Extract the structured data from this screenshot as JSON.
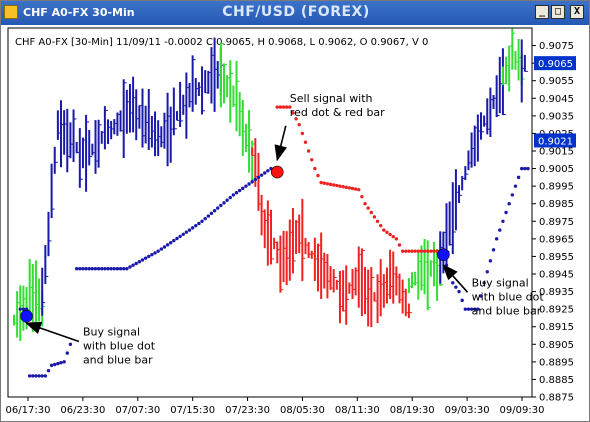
{
  "window": {
    "app_title": "CHF A0-FX 30-Min",
    "chart_title": "CHF/USD (FOREX)",
    "buttons": {
      "minimize": "_",
      "maximize": "□",
      "close": "X"
    }
  },
  "info_line": "CHF A0-FX [30-Min] 11/09/11  -0.0002 C 0.9065, H 0.9068, L 0.9062, O 0.9067, V 0",
  "colors": {
    "up": "#33dd33",
    "down": "#ee2222",
    "blue": "#1a1aaa",
    "signal_blue": "#1111ff",
    "sell_dot": "#ff1111",
    "marker_bg": "#0033cc"
  },
  "chart_data": {
    "type": "ohlc",
    "title": "CHF/USD (FOREX)",
    "ylim": [
      0.8875,
      0.9085
    ],
    "grid": false,
    "legend": "none",
    "x_tick_labels": [
      "06/17:30",
      "06/23:30",
      "07/07:30",
      "07/15:30",
      "07/23:30",
      "08/05:30",
      "08/11:30",
      "08/19:30",
      "09/03:30",
      "09/09:30"
    ],
    "y_tick_labels": [
      "0.9075",
      "0.9065",
      "0.9055",
      "0.9045",
      "0.9035",
      "0.9025",
      "0.9015",
      "0.9005",
      "0.8995",
      "0.8985",
      "0.8975",
      "0.8965",
      "0.8955",
      "0.8945",
      "0.8935",
      "0.8925",
      "0.8915",
      "0.8905",
      "0.8895",
      "0.8885",
      "0.8875"
    ],
    "price_markers": [
      {
        "label": "0.9065",
        "value": 0.9065
      },
      {
        "label": "0.9021",
        "value": 0.9021
      }
    ],
    "segments": [
      {
        "color": "up",
        "waypoints": [
          [
            0,
            0.8918
          ],
          [
            5,
            0.8932
          ],
          [
            9,
            0.8928
          ]
        ]
      },
      {
        "color": "blue",
        "waypoints": [
          [
            9,
            0.893
          ],
          [
            14,
            0.903
          ],
          [
            22,
            0.9012
          ],
          [
            30,
            0.9025
          ],
          [
            38,
            0.904
          ],
          [
            47,
            0.9022
          ],
          [
            57,
            0.9048
          ],
          [
            66,
            0.906
          ]
        ]
      },
      {
        "color": "up",
        "waypoints": [
          [
            66,
            0.9058
          ],
          [
            71,
            0.9045
          ],
          [
            76,
            0.901
          ]
        ]
      },
      {
        "color": "down",
        "waypoints": [
          [
            76,
            0.9015
          ],
          [
            80,
            0.8972
          ],
          [
            85,
            0.8955
          ],
          [
            91,
            0.8968
          ],
          [
            97,
            0.895
          ],
          [
            105,
            0.8935
          ],
          [
            110,
            0.8942
          ],
          [
            116,
            0.893
          ],
          [
            121,
            0.8945
          ],
          [
            126,
            0.8925
          ]
        ]
      },
      {
        "color": "up",
        "waypoints": [
          [
            126,
            0.8938
          ],
          [
            131,
            0.895
          ],
          [
            136,
            0.8948
          ]
        ]
      },
      {
        "color": "blue",
        "waypoints": [
          [
            136,
            0.8955
          ],
          [
            141,
            0.8985
          ],
          [
            146,
            0.9015
          ],
          [
            151,
            0.9035
          ],
          [
            156,
            0.9055
          ]
        ]
      },
      {
        "color": "up",
        "waypoints": [
          [
            156,
            0.9058
          ],
          [
            159,
            0.907
          ],
          [
            162,
            0.9062
          ]
        ]
      },
      {
        "color": "blue",
        "waypoints": [
          [
            162,
            0.9065
          ],
          [
            163,
            0.9065
          ]
        ]
      }
    ],
    "dot_trails": [
      {
        "color": "blue",
        "waypoints": [
          [
            2,
            0.8925
          ],
          [
            4,
            0.8925
          ],
          [
            5,
            0.8887
          ],
          [
            10,
            0.8887
          ],
          [
            12,
            0.8893
          ],
          [
            16,
            0.8895
          ],
          [
            18,
            0.8905
          ]
        ]
      },
      {
        "color": "blue",
        "waypoints": [
          [
            20,
            0.8948
          ],
          [
            36,
            0.8948
          ],
          [
            38,
            0.895
          ],
          [
            46,
            0.8958
          ],
          [
            56,
            0.897
          ],
          [
            60,
            0.8975
          ],
          [
            70,
            0.899
          ],
          [
            78,
            0.9
          ],
          [
            82,
            0.9005
          ]
        ]
      },
      {
        "color": "down",
        "waypoints": [
          [
            84,
            0.904
          ],
          [
            88,
            0.904
          ],
          [
            91,
            0.903
          ],
          [
            94,
            0.9015
          ],
          [
            96,
            0.9005
          ],
          [
            98,
            0.8997
          ],
          [
            110,
            0.8993
          ],
          [
            112,
            0.8985
          ],
          [
            118,
            0.897
          ],
          [
            122,
            0.8965
          ],
          [
            124,
            0.8958
          ],
          [
            138,
            0.8958
          ]
        ]
      },
      {
        "color": "blue",
        "waypoints": [
          [
            138,
            0.895
          ],
          [
            140,
            0.894
          ],
          [
            142,
            0.8935
          ],
          [
            144,
            0.8925
          ],
          [
            148,
            0.8925
          ],
          [
            150,
            0.894
          ],
          [
            154,
            0.8965
          ],
          [
            158,
            0.8985
          ],
          [
            162,
            0.9005
          ],
          [
            164,
            0.9005
          ]
        ]
      }
    ],
    "signals": [
      {
        "type": "buy",
        "index": 4,
        "value": 0.8921
      },
      {
        "type": "sell",
        "index": 84,
        "value": 0.9003
      },
      {
        "type": "buy",
        "index": 137,
        "value": 0.8956
      }
    ],
    "annotations": [
      {
        "lines": [
          "Sell signal with",
          "red dot & red bar"
        ],
        "anchor_index": 84,
        "anchor_value": 0.901,
        "text_index": 88,
        "text_value": 0.9043
      },
      {
        "lines": [
          "Buy signal",
          "with blue dot",
          "and blue bar"
        ],
        "anchor_index": 4,
        "anchor_value": 0.8917,
        "text_index": 22,
        "text_value": 0.891
      },
      {
        "lines": [
          "Buy signal",
          "with blue dot",
          "and blue bar"
        ],
        "anchor_index": 137,
        "anchor_value": 0.895,
        "text_index": 146,
        "text_value": 0.8938
      }
    ]
  }
}
